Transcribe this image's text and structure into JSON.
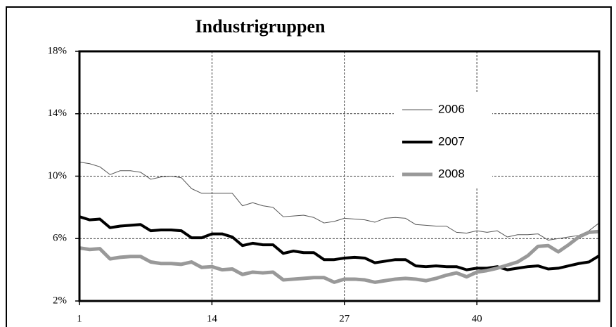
{
  "chart_data": {
    "type": "line",
    "title": "Industrigruppen",
    "x": [
      1,
      2,
      3,
      4,
      5,
      6,
      7,
      8,
      9,
      10,
      11,
      12,
      13,
      14,
      15,
      16,
      17,
      18,
      19,
      20,
      21,
      22,
      23,
      24,
      25,
      26,
      27,
      28,
      29,
      30,
      31,
      32,
      33,
      34,
      35,
      36,
      37,
      38,
      39,
      40,
      41,
      42,
      43,
      44,
      45,
      46,
      47,
      48,
      49,
      50,
      51,
      52
    ],
    "xlim": [
      1,
      52
    ],
    "xticks": [
      1,
      14,
      27,
      40
    ],
    "ylim": [
      2,
      18
    ],
    "yticks": [
      {
        "value": 2,
        "label": "2%"
      },
      {
        "value": 6,
        "label": "6%"
      },
      {
        "value": 10,
        "label": "10%"
      },
      {
        "value": 14,
        "label": "14%"
      },
      {
        "value": 18,
        "label": "18%"
      }
    ],
    "grid": true,
    "series": [
      {
        "name": "2006",
        "color": "#555555",
        "line_width": 1,
        "values": [
          10.9,
          10.8,
          10.6,
          10.1,
          10.35,
          10.35,
          10.25,
          9.8,
          9.95,
          10.0,
          9.9,
          9.2,
          8.9,
          8.9,
          8.9,
          8.9,
          8.1,
          8.3,
          8.1,
          8.0,
          7.4,
          7.45,
          7.5,
          7.35,
          7.0,
          7.1,
          7.3,
          7.25,
          7.2,
          7.05,
          7.3,
          7.35,
          7.3,
          6.9,
          6.85,
          6.8,
          6.8,
          6.4,
          6.35,
          6.5,
          6.4,
          6.5,
          6.1,
          6.25,
          6.25,
          6.3,
          5.9,
          6.0,
          6.1,
          6.2,
          6.5,
          7.0
        ]
      },
      {
        "name": "2007",
        "color": "#000000",
        "line_width": 4,
        "values": [
          7.4,
          7.2,
          7.25,
          6.7,
          6.8,
          6.85,
          6.9,
          6.5,
          6.55,
          6.55,
          6.5,
          6.05,
          6.05,
          6.3,
          6.3,
          6.1,
          5.55,
          5.7,
          5.6,
          5.6,
          5.05,
          5.2,
          5.1,
          5.1,
          4.65,
          4.65,
          4.75,
          4.8,
          4.75,
          4.45,
          4.55,
          4.65,
          4.65,
          4.25,
          4.2,
          4.25,
          4.2,
          4.2,
          4.0,
          4.1,
          4.1,
          4.2,
          4.0,
          4.1,
          4.2,
          4.25,
          4.05,
          4.1,
          4.25,
          4.4,
          4.5,
          4.9
        ]
      },
      {
        "name": "2008",
        "color": "#999999",
        "line_width": 5,
        "values": [
          5.4,
          5.3,
          5.35,
          4.7,
          4.8,
          4.85,
          4.85,
          4.5,
          4.4,
          4.4,
          4.35,
          4.5,
          4.15,
          4.2,
          4.0,
          4.05,
          3.7,
          3.85,
          3.8,
          3.85,
          3.35,
          3.4,
          3.45,
          3.5,
          3.5,
          3.2,
          3.4,
          3.4,
          3.35,
          3.2,
          3.3,
          3.4,
          3.45,
          3.4,
          3.3,
          3.45,
          3.65,
          3.8,
          3.55,
          3.85,
          3.95,
          4.1,
          4.3,
          4.5,
          4.9,
          5.5,
          5.55,
          5.15,
          5.6,
          6.1,
          6.4,
          6.45
        ]
      }
    ]
  }
}
